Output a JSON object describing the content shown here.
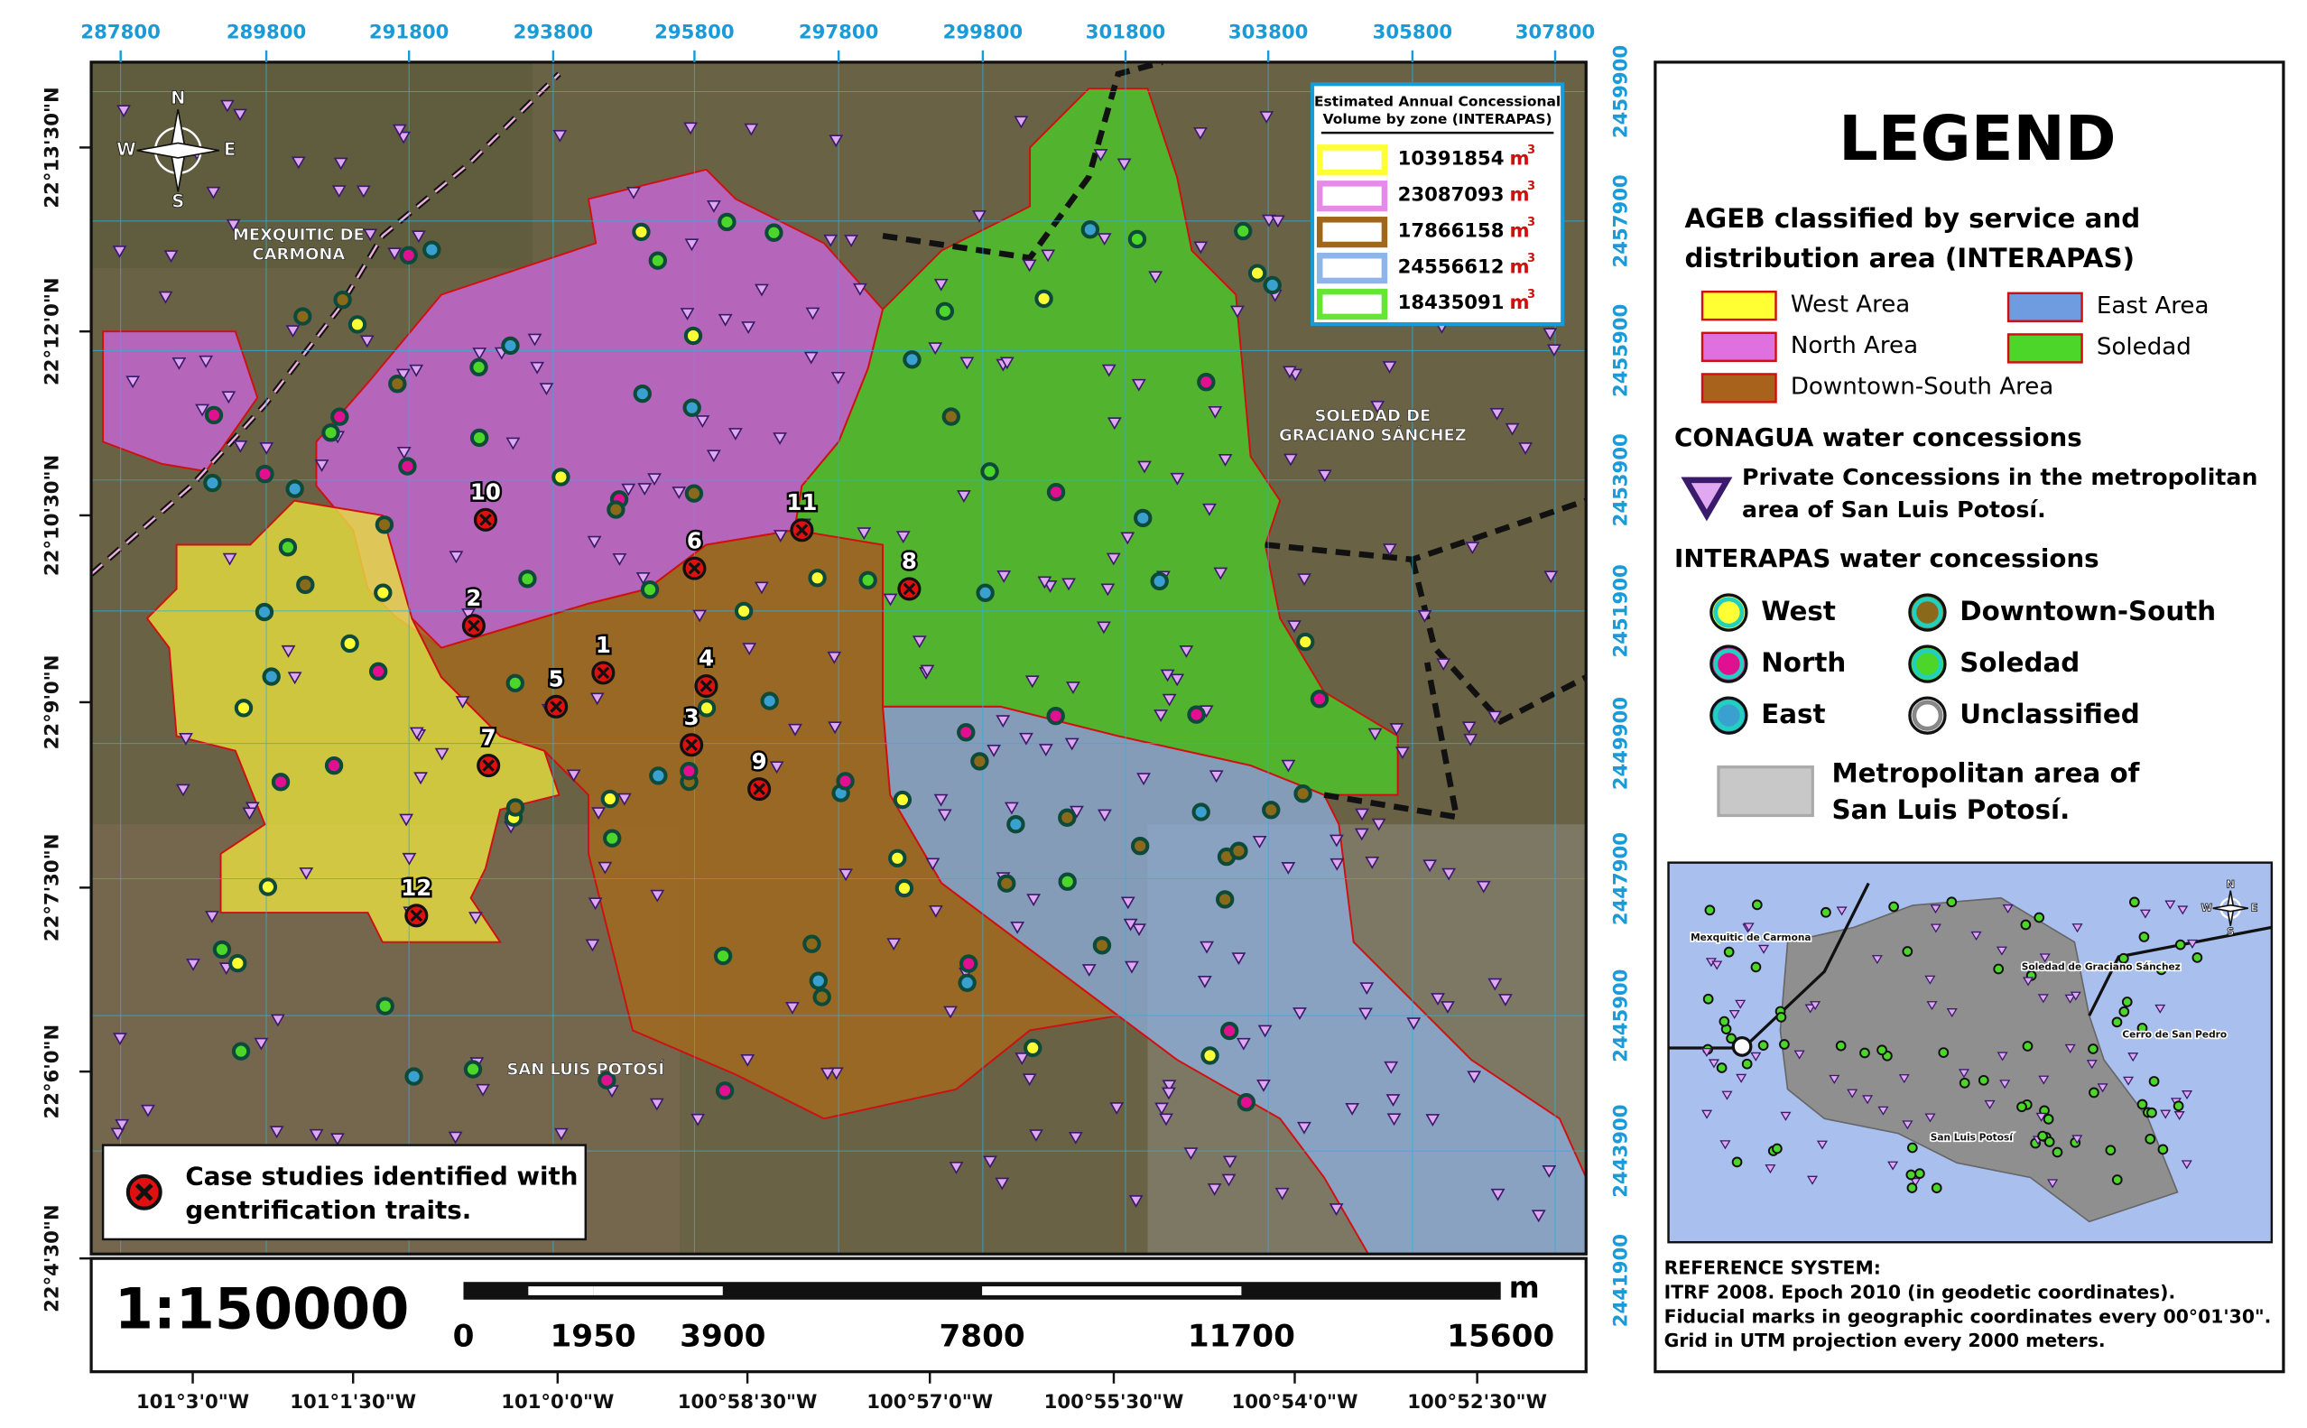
{
  "map": {
    "top_coordinates": [
      287800,
      289800,
      291800,
      293800,
      295800,
      297800,
      299800,
      301800,
      303800,
      305800,
      307800
    ],
    "right_coordinates": [
      2459900,
      2457900,
      2455900,
      2453900,
      2451900,
      2449900,
      2447900,
      2445900,
      2443900,
      2441900
    ],
    "left_coordinates": [
      "22°13'30\"N",
      "22°12'0\"N",
      "22°10'30\"N",
      "22°9'0\"N",
      "22°7'30\"N",
      "22°6'0\"N",
      "22°4'30\"N"
    ],
    "bottom_coordinates": [
      "101°3'0\"W",
      "101°1'30\"W",
      "101°0'0\"W",
      "100°58'30\"W",
      "100°57'0\"W",
      "100°55'30\"W",
      "100°54'0\"W",
      "100°52'30\"W"
    ],
    "compass": [
      "N",
      "S",
      "E",
      "W"
    ],
    "place_labels": [
      [
        "MEXQUITIC DE",
        "CARMONA"
      ],
      [
        "SOLEDAD DE",
        "GRACIANO SÁNCHEZ"
      ],
      [
        "SAN LUIS POTOSÍ"
      ]
    ],
    "case_studies": [
      "1",
      "2",
      "3",
      "4",
      "5",
      "6",
      "7",
      "8",
      "9",
      "10",
      "11",
      "12"
    ],
    "case_box": [
      "Case studies identified with",
      "gentrification traits."
    ]
  },
  "volume_box": {
    "title": [
      "Estimated Annual Concessional",
      "Volume by zone (INTERAPAS)"
    ],
    "unit": "m",
    "unit_exponent": "3",
    "zones": [
      {
        "value": 10391854,
        "color": "#ffff33"
      },
      {
        "value": 23087093,
        "color": "#e58ae8"
      },
      {
        "value": 17866158,
        "color": "#a0661c"
      },
      {
        "value": 24556612,
        "color": "#8fb4ea"
      },
      {
        "value": 18435091,
        "color": "#66e633"
      }
    ]
  },
  "scale": {
    "ratio": "1:150000",
    "ticks": [
      0,
      1950,
      3900,
      7800,
      11700,
      15600
    ],
    "unit": "m"
  },
  "legend": {
    "title": "LEGEND",
    "ageb_heading": [
      "AGEB classified by service and",
      "distribution area (INTERAPAS)"
    ],
    "areas": [
      {
        "name": "West Area",
        "color": "#ffff33"
      },
      {
        "name": "East Area",
        "color": "#6f9be0"
      },
      {
        "name": "North Area",
        "color": "#e070e0"
      },
      {
        "name": "Soledad",
        "color": "#4cd62a"
      },
      {
        "name": "Downtown-South Area",
        "color": "#a8621c"
      }
    ],
    "conagua_heading": "CONAGUA water concessions",
    "conagua_item": [
      "Private Concessions in the metropolitan",
      "area of San Luis Potosí."
    ],
    "interapas_heading": "INTERAPAS water concessions",
    "interapas_items": [
      {
        "name": "West",
        "color": "#ffff33"
      },
      {
        "name": "Downtown-South",
        "color": "#8a6a1a"
      },
      {
        "name": "North",
        "color": "#e01090"
      },
      {
        "name": "Soledad",
        "color": "#4cd62a"
      },
      {
        "name": "East",
        "color": "#3aa0d0"
      },
      {
        "name": "Unclassified",
        "color": "#ffffff"
      }
    ],
    "metro_item": [
      "Metropolitan area of",
      "San Luis Potosí."
    ],
    "inset_labels": [
      "Mexquitic de Carmona",
      "Soledad de Graciano Sánchez",
      "Cerro de San Pedro",
      "San Luis Potosí"
    ],
    "inset_compass": [
      "N",
      "S",
      "E",
      "W"
    ],
    "reference": [
      "REFERENCE SYSTEM:",
      "ITRF 2008. Epoch 2010 (in geodetic coordinates).",
      "Fiducial marks in geographic coordinates every 00°01'30\".",
      "Grid in UTM projection every 2000 meters."
    ]
  }
}
